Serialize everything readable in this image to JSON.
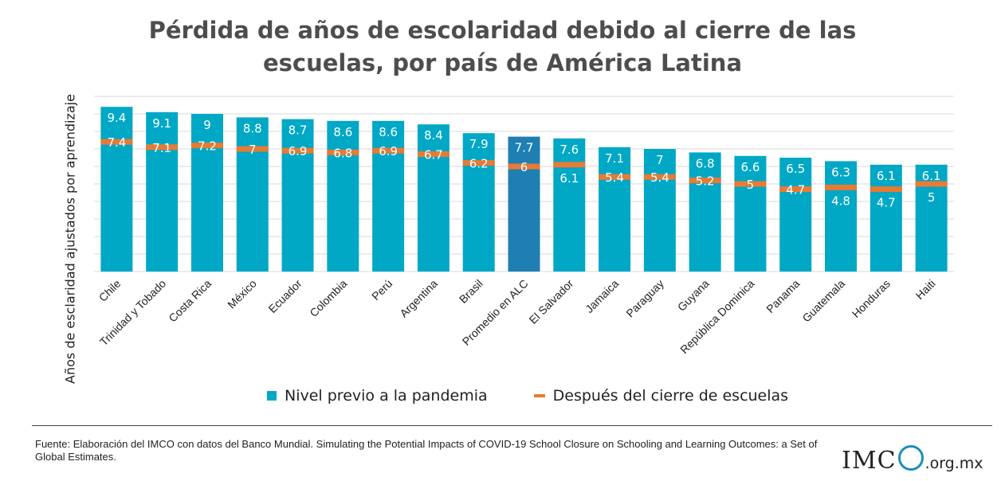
{
  "title_line1": "Pérdida de años de escolaridad debido al cierre de las",
  "title_line2": "escuelas, por país de América Latina",
  "source": "Fuente: Elaboración del IMCO con datos del Banco Mundial. Simulating the Potential Impacts of COVID-19 School Closure on Schooling and Learning Outcomes: a Set of Global Estimates.",
  "logo": {
    "mark": "IMC",
    "domain": ".org.mx"
  },
  "colors": {
    "bar": "#00a8c6",
    "highlight": "#1f7fb3",
    "marker": "#e97a33",
    "grid": "#d9d9d9"
  },
  "chart_data": {
    "type": "bar",
    "ylabel": "Años de esclaridad ajustados por aprendizaje",
    "ylim": [
      0,
      10
    ],
    "grid": true,
    "legend_position": "bottom",
    "highlight": "Promedio en ALC",
    "categories": [
      "Chile",
      "Trinidad y Tobado",
      "Costa Rica",
      "México",
      "Ecuador",
      "Colombia",
      "Perú",
      "Argentina",
      "Brasil",
      "Promedio en ALC",
      "El Salvador",
      "Jamaica",
      "Paraguay",
      "Guyana",
      "República Dominica",
      "Panama",
      "Guatemala",
      "Honduras",
      "Haiti"
    ],
    "series": [
      {
        "name": "Nivel previo a la pandemia",
        "kind": "bar",
        "values": [
          9.4,
          9.1,
          9,
          8.8,
          8.7,
          8.6,
          8.6,
          8.4,
          7.9,
          7.7,
          7.6,
          7.1,
          7,
          6.8,
          6.6,
          6.5,
          6.3,
          6.1,
          6.1
        ]
      },
      {
        "name": "Después del cierre de escuelas",
        "kind": "marker",
        "values": [
          7.4,
          7.1,
          7.2,
          7,
          6.9,
          6.8,
          6.9,
          6.7,
          6.2,
          6,
          6.1,
          5.4,
          5.4,
          5.2,
          5,
          4.7,
          4.8,
          4.7,
          5
        ]
      }
    ]
  }
}
